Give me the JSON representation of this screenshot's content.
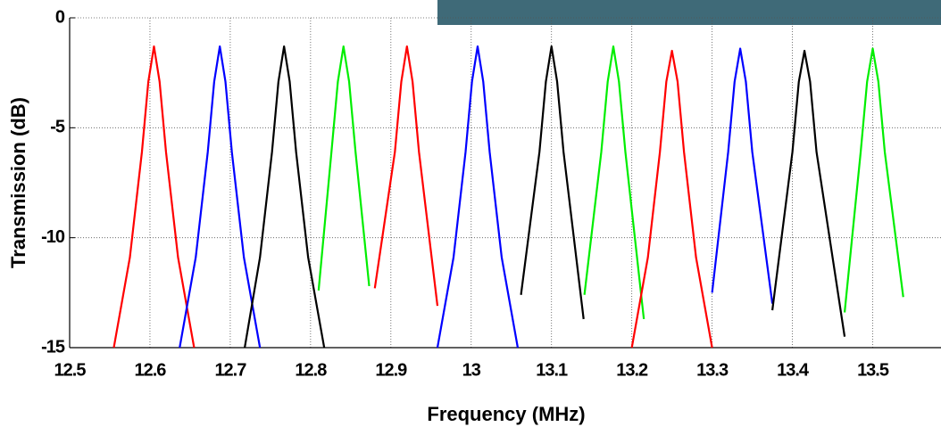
{
  "chart_data": {
    "type": "line",
    "x_label": "Frequency (MHz)",
    "y_label": "Transmission (dB)",
    "xlim": [
      12.5,
      13.585
    ],
    "ylim": [
      -15,
      0
    ],
    "xticks": [
      12.5,
      12.6,
      12.7,
      12.8,
      12.9,
      13,
      13.1,
      13.2,
      13.3,
      13.4,
      13.5
    ],
    "yticks": [
      -15,
      -10,
      -5,
      0
    ],
    "grid": true,
    "series": [
      {
        "color": "#ff0000",
        "x": [
          12.555,
          12.575,
          12.59,
          12.598,
          12.605,
          12.612,
          12.62,
          12.635,
          12.655
        ],
        "values": [
          -15,
          -10.9,
          -6.1,
          -2.9,
          -1.3,
          -2.9,
          -6.1,
          -10.9,
          -15
        ]
      },
      {
        "color": "#0000ff",
        "x": [
          12.637,
          12.657,
          12.672,
          12.68,
          12.687,
          12.694,
          12.702,
          12.717,
          12.737
        ],
        "values": [
          -15,
          -10.9,
          -6.1,
          -2.9,
          -1.3,
          -2.9,
          -6.1,
          -10.9,
          -15
        ]
      },
      {
        "color": "#000000",
        "x": [
          12.718,
          12.737,
          12.752,
          12.76,
          12.767,
          12.774,
          12.782,
          12.797,
          12.817
        ],
        "values": [
          -15,
          -10.9,
          -6.1,
          -2.9,
          -1.3,
          -2.9,
          -6.1,
          -10.9,
          -15
        ]
      },
      {
        "color": "#00ee00",
        "x": [
          12.81,
          12.826,
          12.834,
          12.841,
          12.848,
          12.856,
          12.873
        ],
        "values": [
          -12.4,
          -6.1,
          -2.9,
          -1.3,
          -2.9,
          -6.1,
          -12.2
        ]
      },
      {
        "color": "#ff0000",
        "x": [
          12.88,
          12.905,
          12.913,
          12.92,
          12.927,
          12.935,
          12.958
        ],
        "values": [
          -12.3,
          -6.1,
          -2.9,
          -1.3,
          -2.9,
          -6.1,
          -13.1
        ]
      },
      {
        "color": "#0000ff",
        "x": [
          12.958,
          12.978,
          12.993,
          13.001,
          13.008,
          13.015,
          13.023,
          13.038,
          13.058
        ],
        "values": [
          -15,
          -10.9,
          -6.1,
          -2.9,
          -1.3,
          -2.9,
          -6.1,
          -10.9,
          -15
        ]
      },
      {
        "color": "#000000",
        "x": [
          13.062,
          13.085,
          13.093,
          13.1,
          13.107,
          13.115,
          13.14
        ],
        "values": [
          -12.6,
          -6.1,
          -2.9,
          -1.3,
          -2.9,
          -6.1,
          -13.7
        ]
      },
      {
        "color": "#00ee00",
        "x": [
          13.141,
          13.162,
          13.17,
          13.177,
          13.184,
          13.192,
          13.215
        ],
        "values": [
          -12.6,
          -6.1,
          -2.9,
          -1.3,
          -2.9,
          -6.1,
          -13.7
        ]
      },
      {
        "color": "#ff0000",
        "x": [
          13.2,
          13.22,
          13.235,
          13.243,
          13.25,
          13.257,
          13.265,
          13.28,
          13.3
        ],
        "values": [
          -15,
          -10.9,
          -6.1,
          -2.9,
          -1.5,
          -2.9,
          -6.1,
          -10.9,
          -15
        ]
      },
      {
        "color": "#0000ff",
        "x": [
          13.3,
          13.32,
          13.328,
          13.335,
          13.342,
          13.35,
          13.375
        ],
        "values": [
          -12.5,
          -6.1,
          -2.9,
          -1.4,
          -2.9,
          -6.1,
          -13
        ]
      },
      {
        "color": "#000000",
        "x": [
          13.375,
          13.4,
          13.408,
          13.415,
          13.422,
          13.43,
          13.465
        ],
        "values": [
          -13.3,
          -6.1,
          -2.9,
          -1.5,
          -2.9,
          -6.1,
          -14.5
        ]
      },
      {
        "color": "#00ee00",
        "x": [
          13.465,
          13.485,
          13.493,
          13.5,
          13.507,
          13.515,
          13.538
        ],
        "values": [
          -13.4,
          -6.1,
          -2.9,
          -1.4,
          -2.9,
          -6.1,
          -12.7
        ]
      }
    ]
  }
}
